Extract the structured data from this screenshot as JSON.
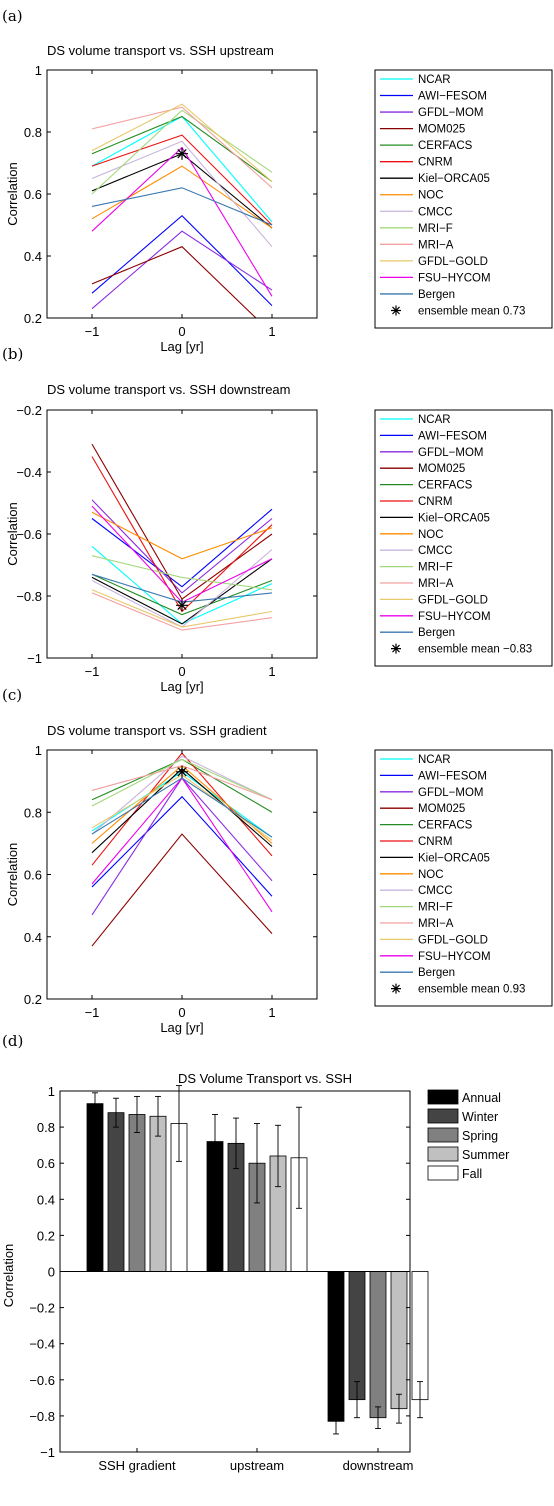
{
  "panel_labels": [
    "(a)",
    "(b)",
    "(c)",
    "(d)"
  ],
  "models": [
    {
      "name": "NCAR",
      "color": "#00ffff"
    },
    {
      "name": "AWI−FESOM",
      "color": "#0000ff"
    },
    {
      "name": "GFDL−MOM",
      "color": "#8a2be2"
    },
    {
      "name": "MOM025",
      "color": "#8b0000"
    },
    {
      "name": "CERFACS",
      "color": "#228b22"
    },
    {
      "name": "CNRM",
      "color": "#ee1111"
    },
    {
      "name": "Kiel−ORCA05",
      "color": "#000000"
    },
    {
      "name": "NOC",
      "color": "#ff8c00"
    },
    {
      "name": "CMCC",
      "color": "#c8b4dc"
    },
    {
      "name": "MRI−F",
      "color": "#a4d87c"
    },
    {
      "name": "MRI−A",
      "color": "#f4a0a0"
    },
    {
      "name": "GFDL−GOLD",
      "color": "#e8c86a"
    },
    {
      "name": "FSU−HYCOM",
      "color": "#ee00ee"
    },
    {
      "name": "Bergen",
      "color": "#3a78b0"
    }
  ],
  "chart_data": [
    {
      "type": "line",
      "title": "DS volume transport vs. SSH upstream",
      "xlabel": "Lag [yr]",
      "ylabel": "Correlation",
      "x": [
        -1,
        0,
        1
      ],
      "xticks": [
        "−1",
        "0",
        "1"
      ],
      "xlim": [
        -1.5,
        1.5
      ],
      "ylim": [
        0.2,
        1
      ],
      "yticks": [
        "0.2",
        "0.4",
        "0.6",
        "0.8",
        "1"
      ],
      "ytick_values": [
        0.2,
        0.4,
        0.6,
        0.8,
        1
      ],
      "series": [
        {
          "name": "NCAR",
          "values": [
            0.69,
            0.85,
            0.51
          ]
        },
        {
          "name": "AWI−FESOM",
          "values": [
            0.28,
            0.53,
            0.24
          ]
        },
        {
          "name": "GFDL−MOM",
          "values": [
            0.23,
            0.48,
            0.29
          ]
        },
        {
          "name": "MOM025",
          "values": [
            0.31,
            0.43,
            0.15
          ]
        },
        {
          "name": "CERFACS",
          "values": [
            0.73,
            0.85,
            0.64
          ]
        },
        {
          "name": "CNRM",
          "values": [
            0.69,
            0.79,
            0.5
          ]
        },
        {
          "name": "Kiel−ORCA05",
          "values": [
            0.61,
            0.73,
            0.49
          ]
        },
        {
          "name": "NOC",
          "values": [
            0.52,
            0.69,
            0.49
          ]
        },
        {
          "name": "CMCC",
          "values": [
            0.65,
            0.77,
            0.43
          ]
        },
        {
          "name": "MRI−F",
          "values": [
            0.6,
            0.87,
            0.67
          ]
        },
        {
          "name": "MRI−A",
          "values": [
            0.81,
            0.88,
            0.62
          ]
        },
        {
          "name": "GFDL−GOLD",
          "values": [
            0.74,
            0.89,
            0.64
          ]
        },
        {
          "name": "FSU−HYCOM",
          "values": [
            0.48,
            0.75,
            0.27
          ]
        },
        {
          "name": "Bergen",
          "values": [
            0.56,
            0.62,
            0.5
          ]
        }
      ],
      "ensemble": {
        "x": 0,
        "value": 0.73,
        "label": "ensemble mean 0.73"
      }
    },
    {
      "type": "line",
      "title": "DS volume transport vs. SSH downstream",
      "xlabel": "Lag [yr]",
      "ylabel": "Correlation",
      "x": [
        -1,
        0,
        1
      ],
      "xticks": [
        "−1",
        "0",
        "1"
      ],
      "xlim": [
        -1.5,
        1.5
      ],
      "ylim": [
        -1,
        -0.2
      ],
      "yticks": [
        "−1",
        "−0.8",
        "−0.6",
        "−0.4",
        "−0.2"
      ],
      "ytick_values": [
        -1,
        -0.8,
        -0.6,
        -0.4,
        -0.2
      ],
      "series": [
        {
          "name": "NCAR",
          "values": [
            -0.64,
            -0.89,
            -0.76
          ]
        },
        {
          "name": "AWI−FESOM",
          "values": [
            -0.55,
            -0.77,
            -0.52
          ]
        },
        {
          "name": "GFDL−MOM",
          "values": [
            -0.49,
            -0.79,
            -0.55
          ]
        },
        {
          "name": "MOM025",
          "values": [
            -0.31,
            -0.81,
            -0.6
          ]
        },
        {
          "name": "CERFACS",
          "values": [
            -0.73,
            -0.86,
            -0.75
          ]
        },
        {
          "name": "CNRM",
          "values": [
            -0.35,
            -0.85,
            -0.57
          ]
        },
        {
          "name": "Kiel−ORCA05",
          "values": [
            -0.74,
            -0.89,
            -0.68
          ]
        },
        {
          "name": "NOC",
          "values": [
            -0.53,
            -0.68,
            -0.58
          ]
        },
        {
          "name": "CMCC",
          "values": [
            -0.75,
            -0.9,
            -0.65
          ]
        },
        {
          "name": "MRI−F",
          "values": [
            -0.67,
            -0.74,
            -0.78
          ]
        },
        {
          "name": "MRI−A",
          "values": [
            -0.79,
            -0.91,
            -0.87
          ]
        },
        {
          "name": "GFDL−GOLD",
          "values": [
            -0.78,
            -0.9,
            -0.85
          ]
        },
        {
          "name": "FSU−HYCOM",
          "values": [
            -0.51,
            -0.82,
            -0.68
          ]
        },
        {
          "name": "Bergen",
          "values": [
            -0.73,
            -0.82,
            -0.79
          ]
        }
      ],
      "ensemble": {
        "x": 0,
        "value": -0.83,
        "label": "ensemble mean −0.83"
      }
    },
    {
      "type": "line",
      "title": "DS volume transport vs. SSH gradient",
      "xlabel": "Lag [yr]",
      "ylabel": "Correlation",
      "x": [
        -1,
        0,
        1
      ],
      "xticks": [
        "−1",
        "0",
        "1"
      ],
      "xlim": [
        -1.5,
        1.5
      ],
      "ylim": [
        0.2,
        1
      ],
      "yticks": [
        "0.2",
        "0.4",
        "0.6",
        "0.8",
        "1"
      ],
      "ytick_values": [
        0.2,
        0.4,
        0.6,
        0.8,
        1
      ],
      "series": [
        {
          "name": "NCAR",
          "values": [
            0.74,
            0.93,
            0.72
          ]
        },
        {
          "name": "AWI−FESOM",
          "values": [
            0.56,
            0.85,
            0.53
          ]
        },
        {
          "name": "GFDL−MOM",
          "values": [
            0.47,
            0.91,
            0.58
          ]
        },
        {
          "name": "MOM025",
          "values": [
            0.37,
            0.73,
            0.41
          ]
        },
        {
          "name": "CERFACS",
          "values": [
            0.84,
            0.97,
            0.8
          ]
        },
        {
          "name": "CNRM",
          "values": [
            0.63,
            0.99,
            0.66
          ]
        },
        {
          "name": "Kiel−ORCA05",
          "values": [
            0.67,
            0.94,
            0.69
          ]
        },
        {
          "name": "NOC",
          "values": [
            0.7,
            0.95,
            0.7
          ]
        },
        {
          "name": "CMCC",
          "values": [
            0.73,
            0.98,
            0.84
          ]
        },
        {
          "name": "MRI−F",
          "values": [
            0.82,
            0.97,
            0.84
          ]
        },
        {
          "name": "MRI−A",
          "values": [
            0.87,
            0.95,
            0.84
          ]
        },
        {
          "name": "GFDL−GOLD",
          "values": [
            0.75,
            0.92,
            0.71
          ]
        },
        {
          "name": "FSU−HYCOM",
          "values": [
            0.57,
            0.91,
            0.48
          ]
        },
        {
          "name": "Bergen",
          "values": [
            0.73,
            0.91,
            0.72
          ]
        }
      ],
      "ensemble": {
        "x": 0,
        "value": 0.93,
        "label": "ensemble mean 0.93"
      }
    },
    {
      "type": "bar",
      "title": "DS Volume Transport vs. SSH",
      "xlabel": "",
      "ylabel": "Correlation",
      "categories": [
        "SSH gradient",
        "upstream",
        "downstream"
      ],
      "ylim": [
        -1,
        1
      ],
      "yticks": [
        "−1",
        "−0.8",
        "−0.6",
        "−0.4",
        "−0.2",
        "0",
        "0.2",
        "0.4",
        "0.6",
        "0.8",
        "1"
      ],
      "ytick_values": [
        -1,
        -0.8,
        -0.6,
        -0.4,
        -0.2,
        0,
        0.2,
        0.4,
        0.6,
        0.8,
        1
      ],
      "series": [
        {
          "name": "Annual",
          "color": "#000000",
          "values": [
            0.93,
            0.72,
            -0.83
          ],
          "err": [
            0.06,
            0.15,
            0.07
          ]
        },
        {
          "name": "Winter",
          "color": "#444444",
          "values": [
            0.88,
            0.71,
            -0.71
          ],
          "err": [
            0.08,
            0.14,
            0.1
          ]
        },
        {
          "name": "Spring",
          "color": "#808080",
          "values": [
            0.87,
            0.6,
            -0.81
          ],
          "err": [
            0.1,
            0.22,
            0.06
          ]
        },
        {
          "name": "Summer",
          "color": "#c0c0c0",
          "values": [
            0.86,
            0.64,
            -0.76
          ],
          "err": [
            0.11,
            0.17,
            0.08
          ]
        },
        {
          "name": "Fall",
          "color": "#ffffff",
          "values": [
            0.82,
            0.63,
            -0.71
          ],
          "err": [
            0.21,
            0.28,
            0.1
          ]
        }
      ]
    }
  ]
}
